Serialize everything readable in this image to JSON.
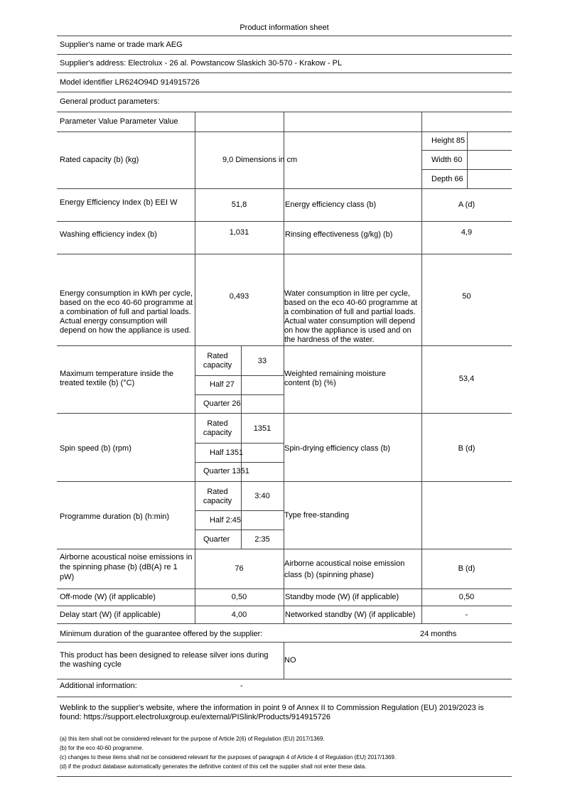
{
  "title": "Product information sheet",
  "supplier_name": "Supplier's name or trade mark AEG",
  "supplier_address": "Supplier's address: Electrolux - 26 al. Powstancow Slaskich 30-570 - Krakow - PL",
  "model": "Model identifier LR624O94D 914915726",
  "general": "General product parameters:",
  "header": "Parameter Value Parameter Value",
  "rated_capacity": {
    "label": "Rated capacity (b) (kg)",
    "value": "9,0 Dimensions in cm",
    "height": "Height 85",
    "width": "Width 60",
    "depth": "Depth 66"
  },
  "eei": {
    "label": "Energy Efficiency Index (b) EEI W",
    "value": "51,8",
    "label2": "Energy efficiency class (b)",
    "value2": "A (d)"
  },
  "wash": {
    "label": "Washing efficiency index (b)",
    "value": "1,031",
    "label2": "Rinsing effectiveness (g/kg) (b)",
    "value2": "4,9"
  },
  "energy": {
    "label": "Energy consumption in kWh per cycle, based on the eco 40-60 programme at a combination of full and partial loads. Actual energy consumption will depend on how the appliance is used.",
    "value": "0,493",
    "label2": "Water consumption in litre per cycle, based on the eco 40-60 programme at a combination of full and partial loads. Actual water consumption will depend on how the appliance is used and on the hardness of the water.",
    "value2": "50"
  },
  "temp": {
    "label": "Maximum temperature inside the treated textile (b) (°C)",
    "rated": "Rated capacity",
    "rated_value": "33",
    "half": "Half 27",
    "quarter": "Quarter 26",
    "label2": "Weighted remaining moisture content (b) (%)",
    "value2": "53,4"
  },
  "spin": {
    "label": "Spin speed (b) (rpm)",
    "rated": "Rated capacity",
    "rated_value": "1351",
    "half": "Half 1351",
    "quarter": "Quarter 1351",
    "label2": "Spin-drying efficiency class (b)",
    "value2": "B (d)"
  },
  "prog": {
    "label": "Programme duration (b) (h:min)",
    "rated": "Rated capacity",
    "rated_value": "3:40",
    "half": "Half 2:45",
    "quarter": "Quarter",
    "quarter_value": "2:35",
    "label2": "Type free-standing"
  },
  "noise": {
    "label": "Airborne acoustical noise emissions in the spinning phase (b) (dB(A) re 1 pW)",
    "value": "76",
    "label2": "Airborne acoustical noise emission class (b) (spinning phase)",
    "value2": "B (d)"
  },
  "offmode": {
    "label": "Off-mode (W) (if applicable)",
    "value": "0,50",
    "label2": "Standby mode (W) (if applicable)",
    "value2": "0,50"
  },
  "delay": {
    "label": "Delay start (W) (if applicable)",
    "value": "4,00",
    "label2": "Networked standby (W) (if applicable)",
    "value2": "-"
  },
  "guarantee": {
    "label": "Minimum duration of the guarantee offered by the supplier:",
    "value": "24 months"
  },
  "silver": {
    "label": "This product has been designed to release silver ions during the washing cycle",
    "value": "NO"
  },
  "additional": {
    "label": "Additional information:",
    "value": "-"
  },
  "weblink": "Weblink to the supplier's website, where the information in point 9 of Annex II to Commission Regulation (EU) 2019/2023 is found: https://support.electroluxgroup.eu/external/PISlink/Products/914915726",
  "footnotes": [
    "(a) this item shall not be considered relevant for the purpose of Article 2(6) of Regulation (EU) 2017/1369.",
    "(b) for the eco 40-60 programme.",
    "(c) changes to these items shall not be considered relevant for the purposes of paragraph 4 of Article 4 of Regulation (EU) 2017/1369.",
    "(d) if the product database automatically generates the definitive content of this cell the supplier shall not enter these data."
  ]
}
